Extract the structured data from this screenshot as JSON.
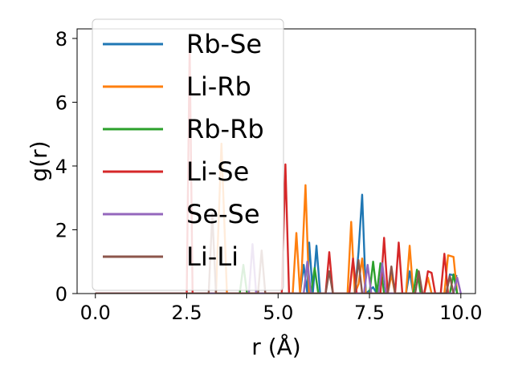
{
  "chart_data": {
    "type": "line",
    "xlabel": "r (Å)",
    "ylabel": "g(r)",
    "xlim": [
      -0.5,
      10.4
    ],
    "ylim": [
      0,
      8.3
    ],
    "xticks": [
      0.0,
      2.5,
      5.0,
      7.5,
      10.0
    ],
    "xtick_labels": [
      "0.0",
      "2.5",
      "5.0",
      "7.5",
      "10.0"
    ],
    "yticks": [
      0,
      2,
      4,
      6,
      8
    ],
    "ytick_labels": [
      "0",
      "2",
      "4",
      "6",
      "8"
    ],
    "grid": false,
    "legend_position": "upper-left",
    "series": [
      {
        "name": "Rb-Se",
        "color": "#1f77b4",
        "points": [
          [
            0,
            0
          ],
          [
            5.6,
            0
          ],
          [
            5.7,
            0.9
          ],
          [
            5.8,
            0
          ],
          [
            5.85,
            1.6
          ],
          [
            5.95,
            0
          ],
          [
            6.05,
            1.5
          ],
          [
            6.15,
            0
          ],
          [
            7.1,
            0
          ],
          [
            7.2,
            1.3
          ],
          [
            7.3,
            3.1
          ],
          [
            7.4,
            0
          ],
          [
            7.6,
            0.2
          ],
          [
            7.7,
            0
          ],
          [
            8.5,
            0
          ],
          [
            8.6,
            0.7
          ],
          [
            8.7,
            0
          ],
          [
            9.6,
            0
          ],
          [
            9.7,
            0.6
          ],
          [
            9.9,
            0.55
          ]
        ]
      },
      {
        "name": "Li-Rb",
        "color": "#ff7f0e",
        "points": [
          [
            0,
            0
          ],
          [
            3.3,
            0
          ],
          [
            3.45,
            4.7
          ],
          [
            3.6,
            0
          ],
          [
            5.4,
            0
          ],
          [
            5.5,
            1.9
          ],
          [
            5.6,
            0
          ],
          [
            5.65,
            0.8
          ],
          [
            5.75,
            3.4
          ],
          [
            5.85,
            0
          ],
          [
            6.9,
            0
          ],
          [
            7.0,
            2.25
          ],
          [
            7.1,
            0
          ],
          [
            7.2,
            0.3
          ],
          [
            7.3,
            1.1
          ],
          [
            7.4,
            0
          ],
          [
            8.0,
            0
          ],
          [
            8.1,
            0.6
          ],
          [
            8.2,
            0
          ],
          [
            8.5,
            0
          ],
          [
            8.6,
            1.5
          ],
          [
            8.7,
            0
          ],
          [
            9.0,
            0
          ],
          [
            9.1,
            0.5
          ],
          [
            9.2,
            0
          ],
          [
            9.55,
            0
          ],
          [
            9.65,
            1.2
          ],
          [
            9.8,
            1.15
          ],
          [
            9.9,
            0
          ]
        ]
      },
      {
        "name": "Rb-Rb",
        "color": "#2ca02c",
        "points": [
          [
            0,
            0
          ],
          [
            3.95,
            0
          ],
          [
            4.05,
            0.9
          ],
          [
            4.15,
            0
          ],
          [
            5.9,
            0
          ],
          [
            6.0,
            0.8
          ],
          [
            6.1,
            0
          ],
          [
            7.5,
            0
          ],
          [
            7.6,
            1.0
          ],
          [
            7.7,
            0
          ],
          [
            7.8,
            0.95
          ],
          [
            7.9,
            0
          ],
          [
            8.7,
            0
          ],
          [
            8.8,
            0.75
          ],
          [
            8.9,
            0
          ],
          [
            9.7,
            0
          ],
          [
            9.8,
            0.6
          ],
          [
            9.9,
            0
          ]
        ]
      },
      {
        "name": "Li-Se",
        "color": "#d62728",
        "points": [
          [
            0,
            0
          ],
          [
            2.5,
            0
          ],
          [
            2.58,
            7.8
          ],
          [
            2.66,
            0
          ],
          [
            5.1,
            0
          ],
          [
            5.2,
            4.05
          ],
          [
            5.3,
            0
          ],
          [
            6.3,
            0
          ],
          [
            6.4,
            1.3
          ],
          [
            6.5,
            0
          ],
          [
            6.95,
            0
          ],
          [
            7.05,
            1.1
          ],
          [
            7.15,
            0
          ],
          [
            7.8,
            0
          ],
          [
            7.9,
            1.75
          ],
          [
            8.0,
            0
          ],
          [
            8.2,
            0
          ],
          [
            8.3,
            1.6
          ],
          [
            8.4,
            0
          ],
          [
            9.0,
            0
          ],
          [
            9.1,
            0.7
          ],
          [
            9.2,
            0.65
          ],
          [
            9.3,
            0
          ],
          [
            9.45,
            0
          ],
          [
            9.55,
            1.25
          ],
          [
            9.65,
            0
          ]
        ]
      },
      {
        "name": "Se-Se",
        "color": "#9467bd",
        "points": [
          [
            0,
            0
          ],
          [
            4.2,
            0
          ],
          [
            4.3,
            1.55
          ],
          [
            4.4,
            0
          ],
          [
            5.7,
            0
          ],
          [
            5.8,
            1.0
          ],
          [
            5.9,
            0
          ],
          [
            7.35,
            0
          ],
          [
            7.45,
            0.9
          ],
          [
            7.55,
            0
          ],
          [
            7.75,
            0
          ],
          [
            7.85,
            0.95
          ],
          [
            7.95,
            0
          ],
          [
            9.8,
            0
          ],
          [
            9.9,
            0.5
          ],
          [
            10.0,
            0
          ]
        ]
      },
      {
        "name": "Li-Li",
        "color": "#8c564b",
        "points": [
          [
            0,
            0
          ],
          [
            3.1,
            0
          ],
          [
            3.2,
            2.5
          ],
          [
            3.3,
            0
          ],
          [
            4.45,
            0
          ],
          [
            4.55,
            1.35
          ],
          [
            4.65,
            0
          ],
          [
            6.3,
            0
          ],
          [
            6.4,
            0.7
          ],
          [
            6.5,
            0
          ],
          [
            7.1,
            0
          ],
          [
            7.2,
            1.05
          ],
          [
            7.3,
            0
          ],
          [
            8.0,
            0
          ],
          [
            8.1,
            0.85
          ],
          [
            8.2,
            0
          ],
          [
            8.75,
            0
          ],
          [
            8.85,
            0.7
          ],
          [
            8.95,
            0
          ],
          [
            9.6,
            0
          ],
          [
            9.7,
            0.55
          ],
          [
            9.8,
            0
          ]
        ]
      }
    ]
  }
}
